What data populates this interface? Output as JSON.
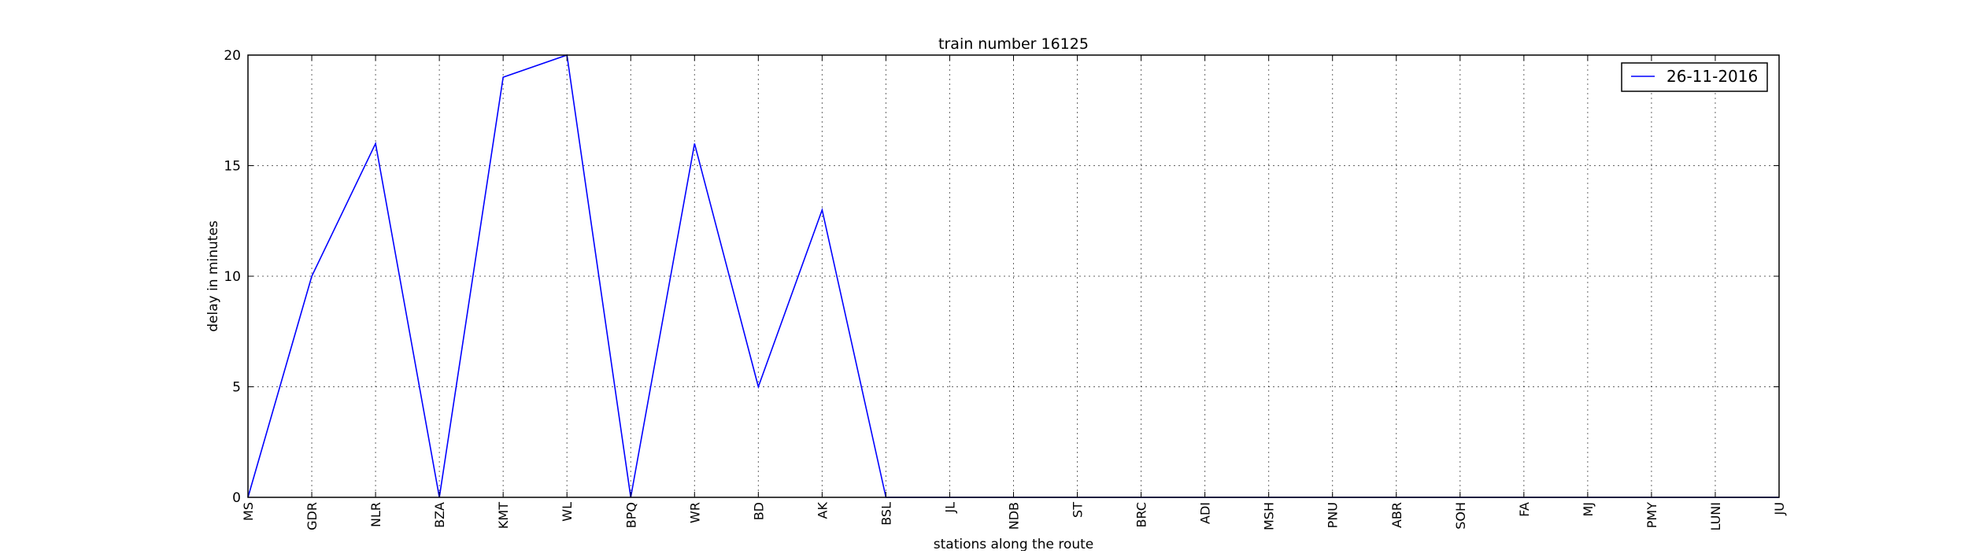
{
  "chart_data": {
    "type": "line",
    "title": "train number 16125",
    "xlabel": "stations along the route",
    "ylabel": "delay in minutes",
    "categories": [
      "MS",
      "GDR",
      "NLR",
      "BZA",
      "KMT",
      "WL",
      "BPQ",
      "WR",
      "BD",
      "AK",
      "BSL",
      "JL",
      "NDB",
      "ST",
      "BRC",
      "ADI",
      "MSH",
      "PNU",
      "ABR",
      "SOH",
      "FA",
      "MJ",
      "PMY",
      "LUNI",
      "JU"
    ],
    "series": [
      {
        "name": "26-11-2016",
        "color": "#0000ff",
        "values": [
          0,
          10,
          16,
          0,
          19,
          20,
          0,
          16,
          5,
          13,
          0,
          0,
          0,
          0,
          0,
          0,
          0,
          0,
          0,
          0,
          0,
          0,
          0,
          0,
          0
        ]
      }
    ],
    "ylim": [
      0,
      20
    ],
    "yticks": [
      0,
      5,
      10,
      15,
      20
    ],
    "grid": true,
    "legend_position": "top-right"
  }
}
